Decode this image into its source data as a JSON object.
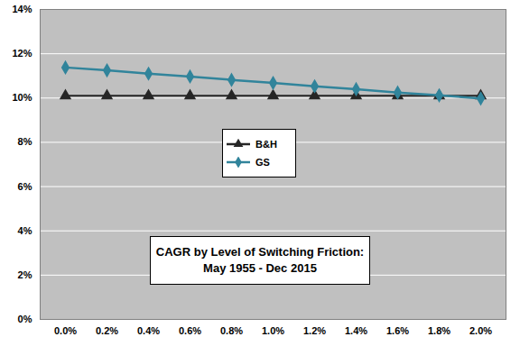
{
  "chart_data": {
    "type": "line",
    "title": "CAGR by Level of Switching Friction:\nMay 1955 - Dec 2015",
    "categories": [
      "0.0%",
      "0.2%",
      "0.4%",
      "0.6%",
      "0.8%",
      "1.0%",
      "1.2%",
      "1.4%",
      "1.6%",
      "1.8%",
      "2.0%"
    ],
    "series": [
      {
        "name": "B&H",
        "color": "#262626",
        "marker": "triangle",
        "values": [
          10.1,
          10.1,
          10.1,
          10.1,
          10.1,
          10.1,
          10.1,
          10.1,
          10.1,
          10.1,
          10.1
        ]
      },
      {
        "name": "GS",
        "color": "#31849b",
        "marker": "diamond",
        "values": [
          11.38,
          11.25,
          11.1,
          10.97,
          10.82,
          10.68,
          10.53,
          10.4,
          10.25,
          10.12,
          9.98
        ]
      }
    ],
    "ylim": [
      0,
      14
    ],
    "yticks": [
      {
        "value": 0,
        "label": "0%"
      },
      {
        "value": 2,
        "label": "2%"
      },
      {
        "value": 4,
        "label": "4%"
      },
      {
        "value": 6,
        "label": "6%"
      },
      {
        "value": 8,
        "label": "8%"
      },
      {
        "value": 10,
        "label": "10%"
      },
      {
        "value": 12,
        "label": "12%"
      },
      {
        "value": 14,
        "label": "14%"
      }
    ],
    "grid": true,
    "legend": "center"
  }
}
